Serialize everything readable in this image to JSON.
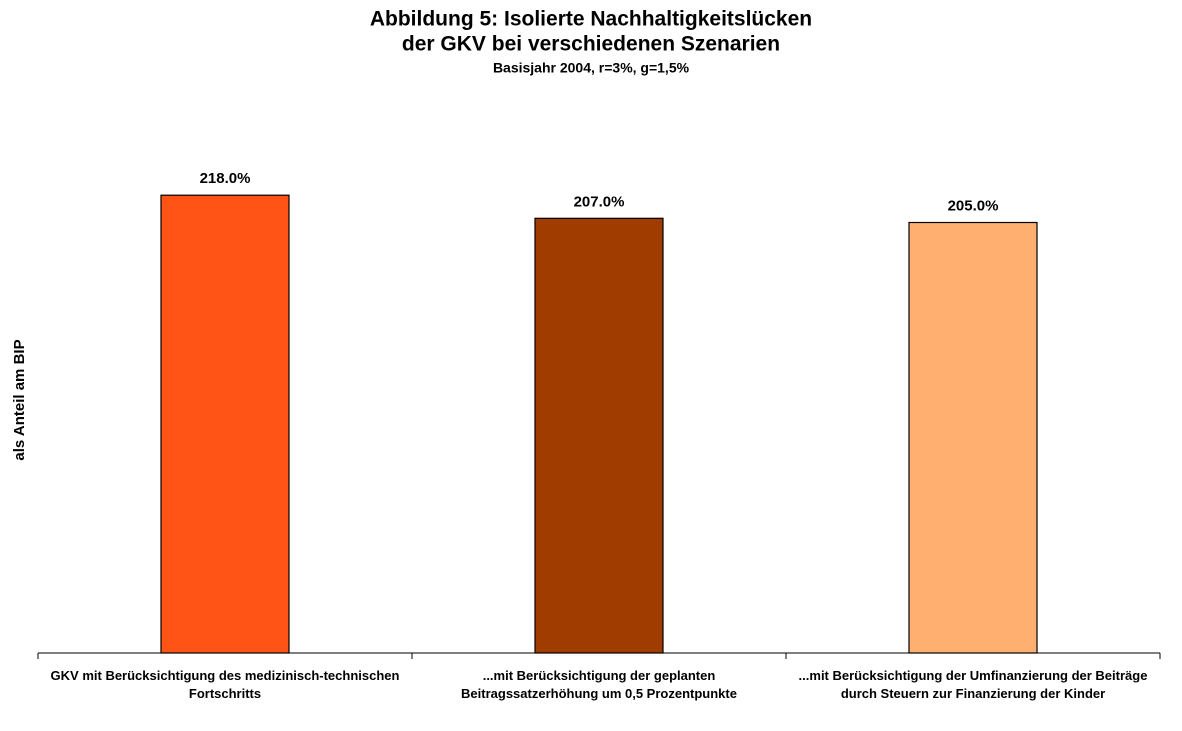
{
  "chart_data": {
    "type": "bar",
    "title": [
      "Abbildung 5: Isolierte Nachhaltigkeitslücken",
      "der GKV bei verschiedenen Szenarien"
    ],
    "subtitle": "Basisjahr 2004, r=3%, g=1,5%",
    "y_label": "als Anteil am BIP",
    "categories": [
      "GKV mit Berücksichtigung des medizinisch-technischen Fortschritts",
      "...mit Berücksichtigung der geplanten Beitragssatzerhöhung um 0,5 Prozentpunkte",
      "...mit Berücksichtigung der Umfinanzierung der Beiträge durch Steuern zur Finanzierung der Kinder"
    ],
    "values": [
      218,
      207,
      205
    ],
    "value_labels": [
      "218.0%",
      "207.0%",
      "205.0%"
    ],
    "colors": [
      "#ff5416",
      "#a13c00",
      "#ffb070"
    ],
    "ylim": [
      0,
      250
    ]
  }
}
